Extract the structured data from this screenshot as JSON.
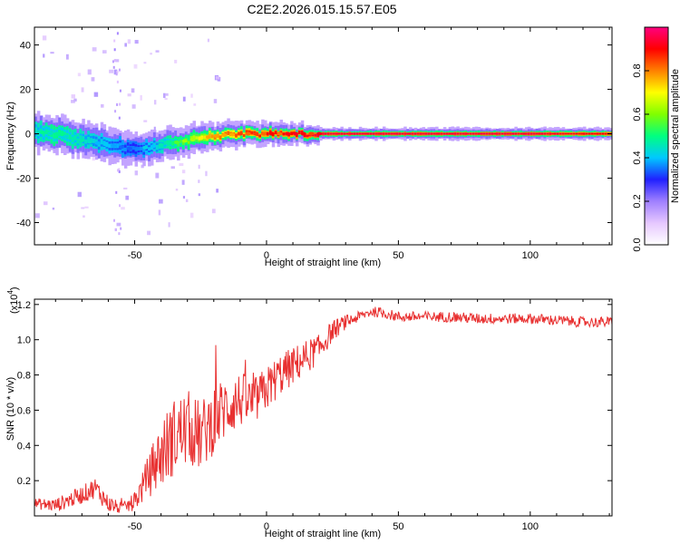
{
  "page_title": "C2E2.2026.015.15.57.E05",
  "chart_data": [
    {
      "type": "heatmap",
      "title": "C2E2.2026.015.15.57.E05",
      "xlabel": "Height of straight line (km)",
      "ylabel": "Frequency (Hz)",
      "xlim": [
        -88,
        131
      ],
      "ylim": [
        -50,
        48
      ],
      "xticks": [
        -50,
        0,
        50,
        100
      ],
      "yticks": [
        40,
        20,
        0,
        -20,
        -40
      ],
      "ytick_labels": [
        "40",
        "20",
        "0",
        "-20",
        "-40"
      ],
      "colorbar": {
        "label": "Normalized spectral amplitude",
        "range": [
          0.0,
          1.0
        ],
        "ticks": [
          0.0,
          0.2,
          0.4,
          0.6,
          0.8
        ],
        "tick_labels": [
          "0.0",
          "0.2",
          "0.4",
          "0.6",
          "0.8"
        ],
        "colormap": [
          "#ffffff",
          "#e6c8ff",
          "#a080ff",
          "#2020ff",
          "#00c8ff",
          "#00ff80",
          "#80ff00",
          "#ffff00",
          "#ff8000",
          "#ff0000",
          "#ff0080"
        ]
      },
      "ridge": {
        "x": [
          -88,
          -80,
          -70,
          -60,
          -50,
          -40,
          -30,
          -20,
          -10,
          0,
          10,
          20,
          40,
          60,
          80,
          100,
          131
        ],
        "freq_center": [
          1,
          0,
          -3,
          -5,
          -7,
          -5,
          -3,
          -1,
          0,
          0,
          0,
          0,
          0,
          0,
          0,
          0,
          0
        ],
        "amplitude": [
          0.45,
          0.5,
          0.45,
          0.4,
          0.35,
          0.45,
          0.6,
          0.8,
          0.85,
          0.9,
          0.9,
          0.95,
          0.95,
          0.95,
          0.95,
          0.95,
          0.9
        ]
      }
    },
    {
      "type": "line",
      "xlabel": "Height of straight line (km)",
      "ylabel": "SNR (10 * v/v)",
      "y_scale_label": "(x10",
      "y_scale_exp": "4",
      "y_scale_close": ")",
      "xlim": [
        -88,
        131
      ],
      "ylim": [
        0.0,
        1.23
      ],
      "xticks": [
        -50,
        0,
        50,
        100
      ],
      "yticks": [
        0.2,
        0.4,
        0.6,
        0.8,
        1.0,
        1.2
      ],
      "ytick_labels": [
        "0.2",
        "0.4",
        "0.6",
        "0.8",
        "1.0",
        "1.2"
      ],
      "series": [
        {
          "name": "SNR",
          "color": "#e83030",
          "x": [
            -88,
            -80,
            -70,
            -65,
            -60,
            -55,
            -50,
            -45,
            -40,
            -35,
            -30,
            -25,
            -20,
            -15,
            -10,
            -5,
            0,
            5,
            10,
            15,
            20,
            25,
            30,
            35,
            40,
            45,
            50,
            60,
            70,
            80,
            90,
            100,
            110,
            120,
            131
          ],
          "values": [
            0.07,
            0.06,
            0.12,
            0.16,
            0.07,
            0.04,
            0.08,
            0.22,
            0.35,
            0.45,
            0.5,
            0.45,
            0.55,
            0.62,
            0.66,
            0.64,
            0.72,
            0.8,
            0.85,
            0.9,
            0.95,
            1.05,
            1.1,
            1.13,
            1.16,
            1.15,
            1.13,
            1.13,
            1.13,
            1.12,
            1.12,
            1.12,
            1.11,
            1.1,
            1.1
          ],
          "noise_amplitude": [
            0.03,
            0.04,
            0.05,
            0.06,
            0.05,
            0.03,
            0.05,
            0.12,
            0.2,
            0.22,
            0.22,
            0.2,
            0.2,
            0.18,
            0.16,
            0.14,
            0.13,
            0.12,
            0.11,
            0.1,
            0.08,
            0.06,
            0.04,
            0.03,
            0.03,
            0.03,
            0.03,
            0.03,
            0.03,
            0.03,
            0.03,
            0.03,
            0.03,
            0.03,
            0.03
          ]
        }
      ]
    }
  ]
}
